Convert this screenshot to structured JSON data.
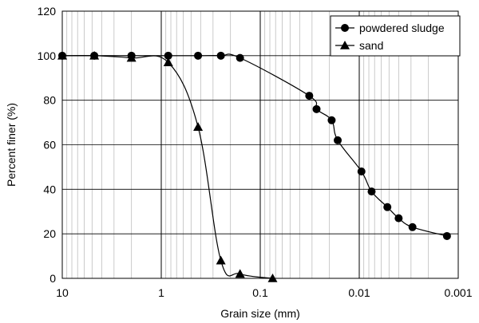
{
  "chart_data": {
    "type": "scatter",
    "xlabel": "Grain size (mm)",
    "ylabel": "Percent finer (%)",
    "x_scale": "log",
    "x_reversed": true,
    "xlim": [
      10,
      0.001
    ],
    "ylim": [
      0,
      120
    ],
    "x_ticks": [
      "10",
      "1",
      "0.1",
      "0.01",
      "0.001"
    ],
    "y_ticks": [
      "0",
      "20",
      "40",
      "60",
      "80",
      "100",
      "120"
    ],
    "grid": "log-minor vertical gridlines, major vertical gridlines at decades",
    "legend_position": "top-right",
    "series": [
      {
        "name": "powdered sludge",
        "marker": "circle",
        "points": [
          [
            10,
            100
          ],
          [
            4.75,
            100
          ],
          [
            2.0,
            100
          ],
          [
            0.85,
            100
          ],
          [
            0.425,
            100
          ],
          [
            0.25,
            100
          ],
          [
            0.16,
            99
          ],
          [
            0.032,
            82
          ],
          [
            0.027,
            76
          ],
          [
            0.019,
            71
          ],
          [
            0.0165,
            62
          ],
          [
            0.0095,
            48
          ],
          [
            0.0075,
            39
          ],
          [
            0.0052,
            32
          ],
          [
            0.004,
            27
          ],
          [
            0.0029,
            23
          ],
          [
            0.0013,
            19
          ]
        ]
      },
      {
        "name": "sand",
        "marker": "triangle",
        "points": [
          [
            10,
            100
          ],
          [
            4.75,
            100
          ],
          [
            2.0,
            99
          ],
          [
            0.85,
            97
          ],
          [
            0.425,
            68
          ],
          [
            0.25,
            8
          ],
          [
            0.16,
            2
          ],
          [
            0.075,
            0
          ]
        ]
      }
    ]
  }
}
